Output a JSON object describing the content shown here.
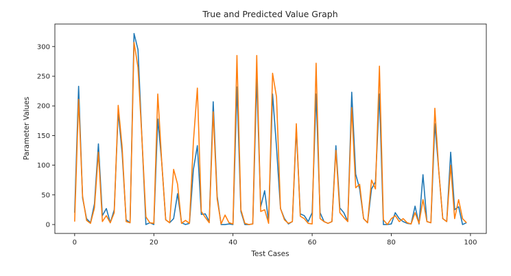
{
  "chart_data": {
    "type": "line",
    "title": "True and Predicted Value Graph",
    "xlabel": "Test Cases",
    "ylabel": "Parameter Values",
    "xlim": [
      -5,
      104
    ],
    "ylim": [
      -15,
      338
    ],
    "xticks": [
      0,
      20,
      40,
      60,
      80,
      100
    ],
    "yticks": [
      0,
      50,
      100,
      150,
      200,
      250,
      300
    ],
    "grid": false,
    "legend": "none",
    "x": [
      0,
      1,
      2,
      3,
      4,
      5,
      6,
      7,
      8,
      9,
      10,
      11,
      12,
      13,
      14,
      15,
      16,
      17,
      18,
      19,
      20,
      21,
      22,
      23,
      24,
      25,
      26,
      27,
      28,
      29,
      30,
      31,
      32,
      33,
      34,
      35,
      36,
      37,
      38,
      39,
      40,
      41,
      42,
      43,
      44,
      45,
      46,
      47,
      48,
      49,
      50,
      51,
      52,
      53,
      54,
      55,
      56,
      57,
      58,
      59,
      60,
      61,
      62,
      63,
      64,
      65,
      66,
      67,
      68,
      69,
      70,
      71,
      72,
      73,
      74,
      75,
      76,
      77,
      78,
      79,
      80,
      81,
      82,
      83,
      84,
      85,
      86,
      87,
      88,
      89,
      90,
      91,
      92,
      93,
      94,
      95,
      96,
      97,
      98,
      99
    ],
    "series": [
      {
        "color": "#1f77b4",
        "values": [
          20,
          233,
          45,
          10,
          3,
          35,
          136,
          15,
          27,
          3,
          25,
          190,
          120,
          8,
          3,
          322,
          295,
          145,
          0,
          3,
          0,
          178,
          105,
          8,
          3,
          10,
          52,
          3,
          0,
          2,
          93,
          133,
          17,
          18,
          5,
          207,
          48,
          0,
          0,
          1,
          0,
          232,
          22,
          0,
          0,
          1,
          247,
          30,
          57,
          5,
          220,
          130,
          27,
          10,
          1,
          5,
          162,
          18,
          15,
          5,
          20,
          220,
          20,
          5,
          2,
          5,
          133,
          28,
          20,
          5,
          223,
          85,
          60,
          10,
          3,
          60,
          72,
          220,
          0,
          0,
          1,
          20,
          10,
          5,
          2,
          1,
          31,
          1,
          84,
          5,
          3,
          170,
          90,
          10,
          5,
          122,
          25,
          30,
          0,
          3
        ]
      },
      {
        "color": "#ff7f0e",
        "values": [
          5,
          211,
          48,
          7,
          2,
          28,
          122,
          5,
          15,
          3,
          20,
          201,
          130,
          5,
          3,
          307,
          265,
          145,
          13,
          3,
          2,
          220,
          105,
          8,
          3,
          93,
          68,
          2,
          7,
          2,
          140,
          230,
          22,
          12,
          3,
          190,
          43,
          1,
          16,
          3,
          1,
          285,
          25,
          2,
          0,
          1,
          285,
          22,
          25,
          2,
          255,
          215,
          27,
          8,
          2,
          5,
          170,
          14,
          10,
          2,
          1,
          272,
          10,
          5,
          2,
          5,
          125,
          20,
          12,
          5,
          197,
          62,
          68,
          10,
          3,
          75,
          60,
          267,
          8,
          0,
          10,
          15,
          5,
          10,
          3,
          1,
          20,
          2,
          42,
          5,
          3,
          196,
          90,
          10,
          5,
          100,
          10,
          42,
          10,
          3
        ]
      }
    ]
  }
}
